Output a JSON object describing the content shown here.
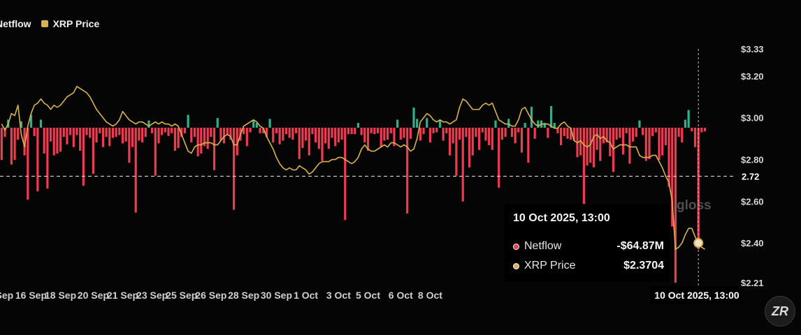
{
  "legend": {
    "netflow_label": "Netflow",
    "price_label": "XRP Price"
  },
  "colors": {
    "positive": "#2bb38d",
    "negative": "#ef3b4f",
    "price": "#d9b24f",
    "background": "#050505"
  },
  "chart_data": {
    "type": "bar",
    "series": [
      {
        "name": "Netflow",
        "type": "bar",
        "values": [
          -3.5,
          -1.0,
          1.0,
          -4.0,
          -3.5,
          -1.3,
          0.8,
          -3.0,
          -7.8,
          1.6,
          -0.9,
          -6.9,
          1.0,
          -2.8,
          -6.6,
          -1.5,
          -3.0,
          -2.8,
          -2.6,
          -1.0,
          -1.8,
          -0.8,
          -2.1,
          -0.8,
          -2.5,
          -6.3,
          -0.8,
          -1.1,
          -5.0,
          -1.6,
          -0.6,
          -2.1,
          -1.0,
          -2.0,
          -1.1,
          -1.0,
          -0.8,
          -1.7,
          -1.5,
          -3.8,
          -2.1,
          -9.2,
          -1.4,
          -1.6,
          -1.0,
          0.9,
          -0.6,
          -5.2,
          -1.7,
          -0.8,
          -0.5,
          -0.9,
          -0.6,
          -2.5,
          -2.2,
          -1.0,
          -0.6,
          1.6,
          -1.6,
          -1.0,
          -3.1,
          -2.8,
          -2.0,
          -2.3,
          -1.0,
          -4.6,
          1.2,
          -1.4,
          -1.7,
          -0.7,
          -1.3,
          -8.9,
          -3.0,
          -1.4,
          -0.7,
          -2.0,
          -0.5,
          0.9,
          0.6,
          -0.6,
          -0.6,
          -1.0,
          1.1,
          -1.6,
          -0.6,
          -1.8,
          -1.4,
          -0.7,
          -1.1,
          -1.3,
          -0.6,
          -3.4,
          -2.2,
          -1.4,
          -3.0,
          -0.7,
          -1.6,
          -2.3,
          -3.6,
          -1.7,
          -2.3,
          -1.1,
          -2.0,
          -1.6,
          -1.3,
          -10.0,
          -0.7,
          -0.7,
          -0.7,
          0.6,
          -0.8,
          -1.6,
          -2.5,
          -0.6,
          -0.7,
          -0.6,
          -2.1,
          -1.4,
          -1.3,
          -0.6,
          -2.0,
          1.0,
          -1.3,
          -1.1,
          -9.3,
          -1.2,
          2.5,
          1.1,
          -1.4,
          -0.7,
          1.2,
          -1.6,
          -0.6,
          -0.5,
          0.9,
          -1.4,
          -0.6,
          -3.0,
          -1.7,
          -5.2,
          -1.3,
          -8.0,
          -1.0,
          -4.3,
          -3.0,
          -1.0,
          -2.4,
          -0.5,
          -1.4,
          -1.9,
          -2.4,
          0.9,
          -6.5,
          -1.3,
          -1.0,
          1.1,
          -1.0,
          -1.7,
          -0.5,
          -2.7,
          0.6,
          -3.8,
          2.6,
          -1.2,
          0.9,
          0.9,
          0.6,
          -1.1,
          2.7,
          0.6,
          -0.6,
          -1.9,
          -0.9,
          -1.2,
          -1.3,
          -1.4,
          -3.2,
          -3.0,
          -8.6,
          -4.1,
          -3.8,
          -4.3,
          -2.4,
          -3.6,
          -1.7,
          -1.6,
          -3.1,
          -4.8,
          -1.3,
          -1.1,
          -2.9,
          -0.6,
          -3.9,
          -1.5,
          -1.0,
          0.9,
          -0.8,
          -3.6,
          -3.4,
          -0.9,
          -0.5,
          -3.5,
          -3.0,
          -1.9,
          -6.4,
          -10.7,
          -64.87,
          -1.0,
          -1.6,
          1.0,
          2.2,
          -0.4,
          -2.1,
          -0.9,
          -0.5,
          -0.4
        ],
        "domain": [
          -16.8,
          9.8
        ]
      },
      {
        "name": "XRP Price",
        "type": "line",
        "values": [
          2.97,
          2.94,
          2.97,
          3.02,
          3.01,
          3.06,
          2.92,
          2.86,
          2.96,
          3.02,
          3.06,
          3.07,
          3.09,
          3.07,
          3.06,
          3.04,
          3.06,
          3.05,
          3.06,
          3.08,
          3.1,
          3.11,
          3.12,
          3.15,
          3.14,
          3.13,
          3.12,
          3.1,
          3.07,
          3.04,
          3.02,
          3.0,
          2.98,
          2.97,
          2.96,
          2.97,
          2.99,
          3.03,
          3.01,
          2.99,
          2.98,
          2.97,
          2.98,
          2.98,
          2.97,
          2.96,
          2.97,
          2.98,
          2.97,
          2.98,
          2.97,
          2.97,
          2.96,
          2.97,
          2.96,
          2.92,
          2.88,
          2.84,
          2.83,
          2.86,
          2.87,
          2.87,
          2.88,
          2.88,
          2.88,
          2.87,
          2.87,
          2.89,
          2.91,
          2.92,
          2.91,
          2.87,
          2.87,
          2.92,
          2.96,
          2.97,
          2.98,
          2.99,
          2.98,
          2.96,
          2.95,
          2.91,
          2.88,
          2.85,
          2.81,
          2.78,
          2.76,
          2.75,
          2.76,
          2.75,
          2.75,
          2.77,
          2.76,
          2.75,
          2.73,
          2.74,
          2.76,
          2.78,
          2.79,
          2.79,
          2.79,
          2.8,
          2.8,
          2.81,
          2.81,
          2.8,
          2.79,
          2.78,
          2.79,
          2.81,
          2.85,
          2.87,
          2.85,
          2.84,
          2.84,
          2.85,
          2.86,
          2.87,
          2.86,
          2.88,
          2.88,
          2.87,
          2.86,
          2.87,
          2.86,
          2.84,
          2.85,
          2.9,
          2.98,
          3.0,
          3.02,
          3.01,
          2.99,
          2.98,
          2.99,
          2.98,
          2.98,
          2.97,
          2.98,
          2.99,
          3.05,
          3.09,
          3.08,
          3.06,
          3.04,
          3.04,
          3.04,
          3.06,
          3.07,
          3.06,
          3.07,
          3.03,
          2.99,
          2.98,
          2.97,
          2.97,
          2.96,
          2.96,
          2.99,
          3.04,
          3.05,
          3.02,
          2.99,
          2.97,
          2.96,
          2.97,
          2.97,
          2.97,
          2.96,
          2.95,
          2.95,
          2.97,
          2.98,
          2.96,
          2.95,
          2.89,
          2.88,
          2.89,
          2.87,
          2.86,
          2.87,
          2.91,
          2.92,
          2.9,
          2.91,
          2.89,
          2.88,
          2.85,
          2.86,
          2.87,
          2.87,
          2.87,
          2.86,
          2.86,
          2.86,
          2.82,
          2.81,
          2.81,
          2.81,
          2.82,
          2.82,
          2.79,
          2.76,
          2.72,
          2.69,
          2.6,
          2.37,
          2.38,
          2.4,
          2.44,
          2.47,
          2.47,
          2.43,
          2.4,
          2.38,
          2.37
        ],
        "domain": [
          2.21,
          3.33
        ]
      }
    ],
    "x_ticks": [
      {
        "label": "Sep",
        "index": 0
      },
      {
        "label": "16 Sep",
        "index": 9
      },
      {
        "label": "18 Sep",
        "index": 18
      },
      {
        "label": "20 Sep",
        "index": 28
      },
      {
        "label": "21 Sep",
        "index": 37
      },
      {
        "label": "23 Sep",
        "index": 46
      },
      {
        "label": "25 Sep",
        "index": 55
      },
      {
        "label": "26 Sep",
        "index": 64
      },
      {
        "label": "28 Sep",
        "index": 74
      },
      {
        "label": "30 Sep",
        "index": 84
      },
      {
        "label": "1 Oct",
        "index": 93
      },
      {
        "label": "3 Oct",
        "index": 103
      },
      {
        "label": "5 Oct",
        "index": 112
      },
      {
        "label": "6 Oct",
        "index": 122
      },
      {
        "label": "8 Oct",
        "index": 131
      }
    ],
    "y_ticks": [
      "$3.33",
      "$3.20",
      "$3.00",
      "$2.80",
      "$2.60",
      "$2.40",
      "$2.21"
    ],
    "y_tick_values": [
      3.33,
      3.2,
      3.0,
      2.8,
      2.6,
      2.4,
      2.21
    ],
    "reference_line": {
      "label": "2.72",
      "value": 2.72
    },
    "highlight": {
      "label": "10 Oct 2025, 13:00",
      "index": 213
    },
    "ylim": [
      2.21,
      3.33
    ],
    "legend_position": "top-left",
    "grid": false
  },
  "tooltip": {
    "title": "10 Oct 2025, 13:00",
    "rows": [
      {
        "label": "Netflow",
        "value": "-$64.87M"
      },
      {
        "label": "XRP Price",
        "value": "$2.3704"
      }
    ]
  },
  "watermark": "gloss",
  "logo": "ZR"
}
